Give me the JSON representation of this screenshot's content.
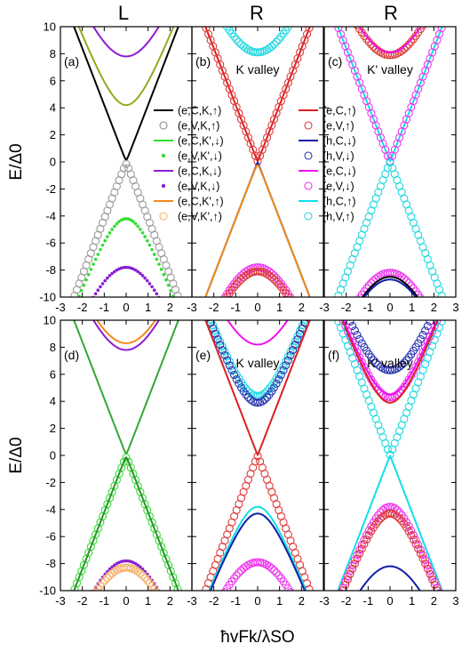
{
  "chart_data": {
    "type": "line",
    "column_headers": [
      "L",
      "R",
      "R"
    ],
    "ylabel": "E/Δ0",
    "xlabel": "ħvFk/λSO",
    "xlim": [
      -3,
      3
    ],
    "ylim": [
      -10,
      10
    ],
    "x_ticks": [
      -3,
      -2,
      -1,
      0,
      1,
      2,
      3
    ],
    "y_ticks": [
      -10,
      -8,
      -6,
      -4,
      -2,
      0,
      2,
      4,
      6,
      8,
      10
    ],
    "legend_left": [
      {
        "label": "(e,C,K,↑)",
        "color": "#000000",
        "marker": "line"
      },
      {
        "label": "(e,V,K,↑)",
        "color": "#8c8c8c",
        "marker": "open-circle"
      },
      {
        "label": "(e,C,K',↓)",
        "color": "#33dd33",
        "marker": "line"
      },
      {
        "label": "(e,V,K',↓)",
        "color": "#33dd33",
        "marker": "dot"
      },
      {
        "label": "(e,C,K,↓)",
        "color": "#8a1ed2",
        "marker": "line"
      },
      {
        "label": "(e,V,K,↓)",
        "color": "#8a1ed2",
        "marker": "dot"
      },
      {
        "label": "(e,C,K',↑)",
        "color": "#f08a1a",
        "marker": "line"
      },
      {
        "label": "(e,V,K',↑)",
        "color": "#f5b06a",
        "marker": "open-circle"
      }
    ],
    "legend_right": [
      {
        "label": "(e,C,↑)",
        "color": "#dd1f1f",
        "marker": "line"
      },
      {
        "label": "(e,V,↑)",
        "color": "#dd3a3a",
        "marker": "open-circle"
      },
      {
        "label": "(h,C,↓)",
        "color": "#0f1fa8",
        "marker": "line"
      },
      {
        "label": "(h,V,↓)",
        "color": "#2a35b0",
        "marker": "open-circle"
      },
      {
        "label": "(e,C,↓)",
        "color": "#ee11ee",
        "marker": "line"
      },
      {
        "label": "(e,V,↓)",
        "color": "#ee33ee",
        "marker": "open-circle"
      },
      {
        "label": "(h,C,↑)",
        "color": "#10e0e8",
        "marker": "line"
      },
      {
        "label": "(h,V,↑)",
        "color": "#20d8e0",
        "marker": "open-circle"
      }
    ],
    "panels": [
      {
        "id": "a",
        "label": "(a)",
        "annotation": "",
        "curves": [
          {
            "color": "#000000",
            "style": "line",
            "gap": 0.15,
            "slope": 4.2,
            "sign": 1
          },
          {
            "color": "#9a9a9a",
            "style": "circle",
            "gap": 0.15,
            "slope": 4.2,
            "sign": -1
          },
          {
            "color": "#9aa61e",
            "style": "line",
            "gap": 4.2,
            "slope": 4.2,
            "sign": 1
          },
          {
            "color": "#33dd33",
            "style": "dot",
            "gap": 4.2,
            "slope": 4.2,
            "sign": -1
          },
          {
            "color": "#8a1ed2",
            "style": "line",
            "gap": 7.8,
            "slope": 4.2,
            "sign": 1
          },
          {
            "color": "#8a1ed2",
            "style": "dot",
            "gap": 7.8,
            "slope": 4.2,
            "sign": -1
          }
        ]
      },
      {
        "id": "b",
        "label": "(b)",
        "annotation": "K valley",
        "curves": [
          {
            "color": "#20d8e0",
            "style": "circle",
            "gap": 8.1,
            "slope": 4.2,
            "sign": 1
          },
          {
            "color": "#dd1f1f",
            "style": "line",
            "gap": 0.05,
            "slope": 4.2,
            "sign": 1
          },
          {
            "color": "#dd3a3a",
            "style": "circle",
            "gap": 0.05,
            "slope": 4.2,
            "sign": 1
          },
          {
            "color": "#0f1fa8",
            "style": "line",
            "gap": 0.05,
            "slope": 4.2,
            "sign": -1
          },
          {
            "color": "#f08a1a",
            "style": "line",
            "gap": 0.25,
            "slope": 4.2,
            "sign": -1
          },
          {
            "color": "#ee33ee",
            "style": "circle",
            "gap": 7.8,
            "slope": 4.2,
            "sign": -1
          },
          {
            "color": "#dd3a3a",
            "style": "circle",
            "gap": 8.1,
            "slope": 4.2,
            "sign": -1
          }
        ]
      },
      {
        "id": "c",
        "label": "(c)",
        "annotation": "K' valley",
        "curves": [
          {
            "color": "#dd3a3a",
            "style": "circle",
            "gap": 7.9,
            "slope": 4.2,
            "sign": 1
          },
          {
            "color": "#ee11ee",
            "style": "line",
            "gap": 8.1,
            "slope": 4.2,
            "sign": 1
          },
          {
            "color": "#10e0e8",
            "style": "line",
            "gap": 0.05,
            "slope": 4.2,
            "sign": 1
          },
          {
            "color": "#ee33ee",
            "style": "circle",
            "gap": 0.05,
            "slope": 4.2,
            "sign": 1
          },
          {
            "color": "#20d8e0",
            "style": "circle",
            "gap": 0.05,
            "slope": 4.2,
            "sign": -1
          },
          {
            "color": "#ee33ee",
            "style": "circle",
            "gap": 8.2,
            "slope": 4.2,
            "sign": -1
          },
          {
            "color": "#000000",
            "style": "line",
            "gap": 8.5,
            "slope": 4.2,
            "sign": -1
          },
          {
            "color": "#0f1fa8",
            "style": "line",
            "gap": 8.7,
            "slope": 4.2,
            "sign": -1
          }
        ]
      },
      {
        "id": "d",
        "label": "(d)",
        "annotation": "",
        "curves": [
          {
            "color": "#f08a1a",
            "style": "line",
            "gap": 8.3,
            "slope": 4.2,
            "sign": 1
          },
          {
            "color": "#8a1ed2",
            "style": "line",
            "gap": 7.8,
            "slope": 4.2,
            "sign": 1
          },
          {
            "color": "#33a833",
            "style": "line",
            "gap": 0.15,
            "slope": 4.2,
            "sign": 1
          },
          {
            "color": "#33dd33",
            "style": "circle",
            "gap": 0.15,
            "slope": 4.2,
            "sign": -1
          },
          {
            "color": "#2f8f2f",
            "style": "line",
            "gap": 0.15,
            "slope": 4.2,
            "sign": -1
          },
          {
            "color": "#8a1ed2",
            "style": "dot",
            "gap": 7.8,
            "slope": 4.2,
            "sign": -1
          },
          {
            "color": "#f5b06a",
            "style": "circle",
            "gap": 8.3,
            "slope": 4.2,
            "sign": -1
          }
        ]
      },
      {
        "id": "e",
        "label": "(e)",
        "annotation": "K valley",
        "curves": [
          {
            "color": "#ee11ee",
            "style": "line",
            "gap": 8.2,
            "slope": 4.2,
            "sign": 1
          },
          {
            "color": "#20d8e0",
            "style": "circle",
            "gap": 4.4,
            "slope": 4.2,
            "sign": 1
          },
          {
            "color": "#2a35b0",
            "style": "circle",
            "gap": 3.9,
            "slope": 4.2,
            "sign": 1
          },
          {
            "color": "#dd1f1f",
            "style": "line",
            "gap": 0.05,
            "slope": 4.2,
            "sign": 1
          },
          {
            "color": "#dd3a3a",
            "style": "circle",
            "gap": 0.05,
            "slope": 4.2,
            "sign": -1
          },
          {
            "color": "#10e0e8",
            "style": "line",
            "gap": 3.8,
            "slope": 4.2,
            "sign": -1
          },
          {
            "color": "#0f1fa8",
            "style": "line",
            "gap": 4.3,
            "slope": 4.2,
            "sign": -1
          },
          {
            "color": "#ee33ee",
            "style": "circle",
            "gap": 7.9,
            "slope": 4.2,
            "sign": -1
          }
        ]
      },
      {
        "id": "f",
        "label": "(f)",
        "annotation": "K' valley",
        "curves": [
          {
            "color": "#2a35b0",
            "style": "circle",
            "gap": 6.3,
            "slope": 4.2,
            "sign": 1
          },
          {
            "color": "#ee33ee",
            "style": "circle",
            "gap": 4.3,
            "slope": 4.2,
            "sign": 1
          },
          {
            "color": "#ee11ee",
            "style": "line",
            "gap": 4.5,
            "slope": 4.2,
            "sign": 1
          },
          {
            "color": "#dd1f1f",
            "style": "line",
            "gap": 3.9,
            "slope": 4.2,
            "sign": 1
          },
          {
            "color": "#20d8e0",
            "style": "circle",
            "gap": 0.05,
            "slope": 4.2,
            "sign": 1
          },
          {
            "color": "#10e0e8",
            "style": "line",
            "gap": 0.05,
            "slope": 4.2,
            "sign": -1
          },
          {
            "color": "#ee33ee",
            "style": "circle",
            "gap": 3.8,
            "slope": 4.2,
            "sign": -1
          },
          {
            "color": "#dd3a3a",
            "style": "circle",
            "gap": 4.3,
            "slope": 4.2,
            "sign": -1
          },
          {
            "color": "#0f1fa8",
            "style": "line",
            "gap": 8.2,
            "slope": 4.2,
            "sign": -1
          }
        ]
      }
    ]
  }
}
